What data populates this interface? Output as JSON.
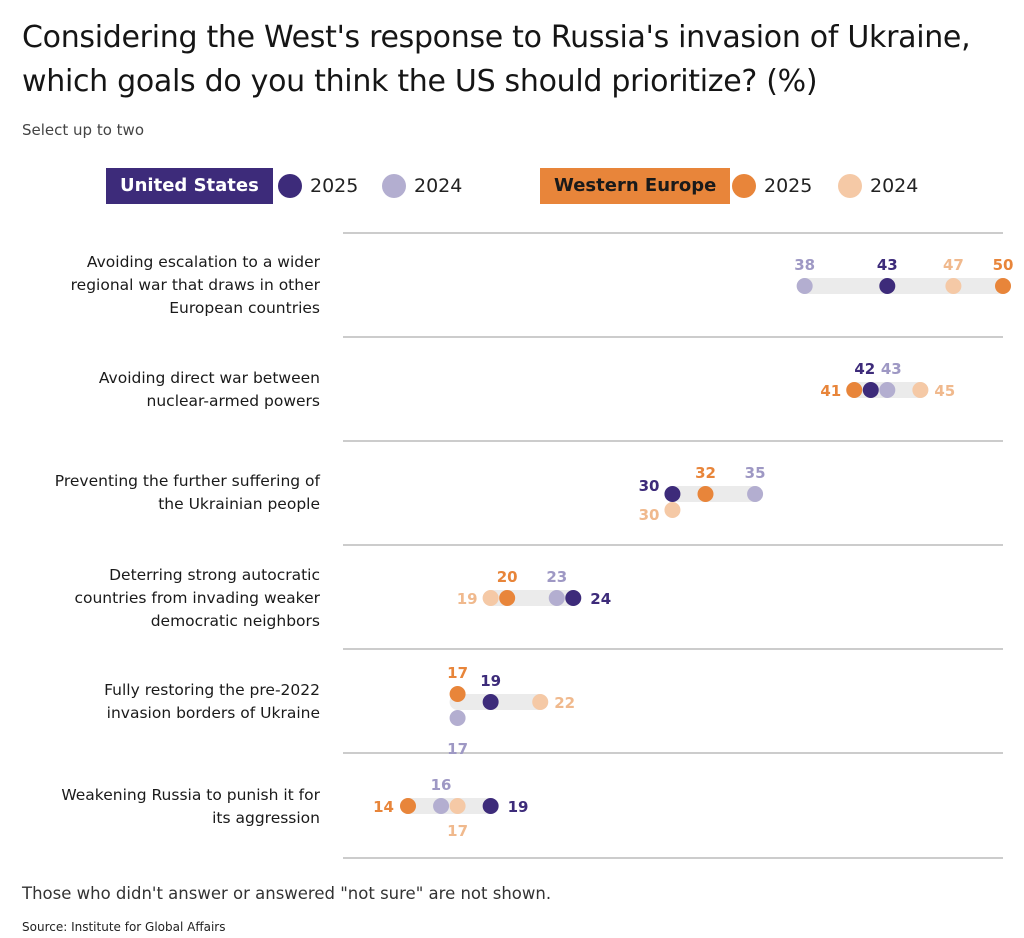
{
  "title": "Considering the West's response to Russia's invasion of Ukraine, which goals do you think the US should prioritize? (%)",
  "subtitle": "Select up to two",
  "legend": {
    "us_label": "United States",
    "we_label": "Western Europe",
    "y2025": "2025",
    "y2024": "2024"
  },
  "colors": {
    "us2025": "#3d2b7a",
    "us2024": "#b3aed0",
    "we2025": "#e8853a",
    "we2024": "#f5c9a6",
    "track": "#ebebeb",
    "rule": "#9a9a9a"
  },
  "chart_data": {
    "type": "dot",
    "title": "Considering the West's response to Russia's invasion of Ukraine, which goals do you think the US should prioritize? (%)",
    "series_names": [
      "United States 2025",
      "United States 2024",
      "Western Europe 2025",
      "Western Europe 2024"
    ],
    "categories": [
      {
        "label": "Avoiding escalation to a wider regional war that draws in other European countries",
        "us2025": 43,
        "us2024": 38,
        "we2025": 50,
        "we2024": 47
      },
      {
        "label": "Avoiding direct war between nuclear-armed powers",
        "us2025": 42,
        "us2024": 43,
        "we2025": 41,
        "we2024": 45
      },
      {
        "label": "Preventing the further suffering of the Ukrainian people",
        "us2025": 30,
        "us2024": 35,
        "we2025": 32,
        "we2024": 30
      },
      {
        "label": "Deterring strong autocratic countries from invading weaker democratic neighbors",
        "us2025": 24,
        "us2024": 23,
        "we2025": 20,
        "we2024": 19
      },
      {
        "label": "Fully restoring the pre-2022 invasion borders of Ukraine",
        "us2025": 19,
        "us2024": 17,
        "we2025": 17,
        "we2024": 22
      },
      {
        "label": "Weakening Russia to punish it for its aggression",
        "us2025": 19,
        "us2024": 16,
        "we2025": 14,
        "we2024": 17
      }
    ],
    "xlim": [
      10,
      50
    ],
    "grid": false
  },
  "footnote": "Those who didn't answer or answered \"not sure\" are not shown.",
  "source": "Source: Institute for Global Affairs"
}
